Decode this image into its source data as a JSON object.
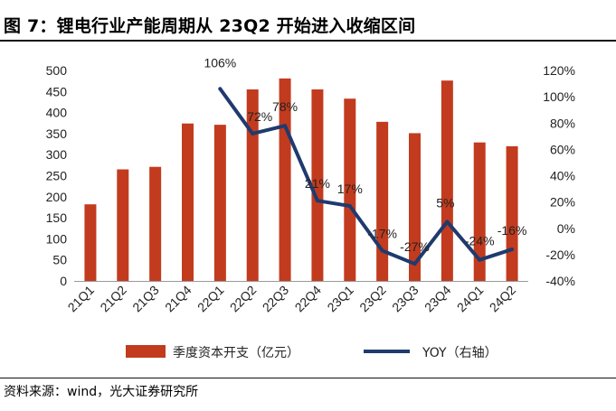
{
  "header": {
    "title": "图 7：锂电行业产能周期从 23Q2 开始进入收缩区间"
  },
  "footer": {
    "source": "资料来源：wind，光大证券研究所"
  },
  "colors": {
    "bar": "#C23B1E",
    "line": "#1F3A6E"
  },
  "chart_data": {
    "type": "bar",
    "categories": [
      "21Q1",
      "21Q2",
      "21Q3",
      "21Q4",
      "22Q1",
      "22Q2",
      "22Q3",
      "22Q4",
      "23Q1",
      "23Q2",
      "23Q3",
      "23Q4",
      "24Q1",
      "24Q2"
    ],
    "series": [
      {
        "name": "季度资本开支（亿元）",
        "type": "bar",
        "axis": "left",
        "values": [
          182,
          265,
          271,
          374,
          371,
          455,
          481,
          455,
          433,
          378,
          351,
          476,
          329,
          320
        ]
      },
      {
        "name": "YOY（右轴）",
        "type": "line",
        "axis": "right",
        "values": [
          null,
          null,
          null,
          null,
          106,
          72,
          78,
          21,
          17,
          -17,
          -27,
          5,
          -24,
          -16
        ],
        "labels": [
          "",
          "",
          "",
          "",
          "106%",
          "72%",
          "78%",
          "21%",
          "17%",
          "-17%",
          "-27%",
          "5%",
          "-24%",
          "-16%"
        ]
      }
    ],
    "y_left": {
      "min": 0,
      "max": 500,
      "step": 50,
      "ticks": [
        "0",
        "50",
        "100",
        "150",
        "200",
        "250",
        "300",
        "350",
        "400",
        "450",
        "500"
      ]
    },
    "y_right": {
      "min": -40,
      "max": 120,
      "step": 20,
      "ticks": [
        "-40%",
        "-20%",
        "0%",
        "20%",
        "40%",
        "60%",
        "80%",
        "100%",
        "120%"
      ]
    },
    "legend": {
      "position": "bottom",
      "entries": [
        "季度资本开支（亿元）",
        "YOY（右轴）"
      ]
    },
    "grid": false
  }
}
